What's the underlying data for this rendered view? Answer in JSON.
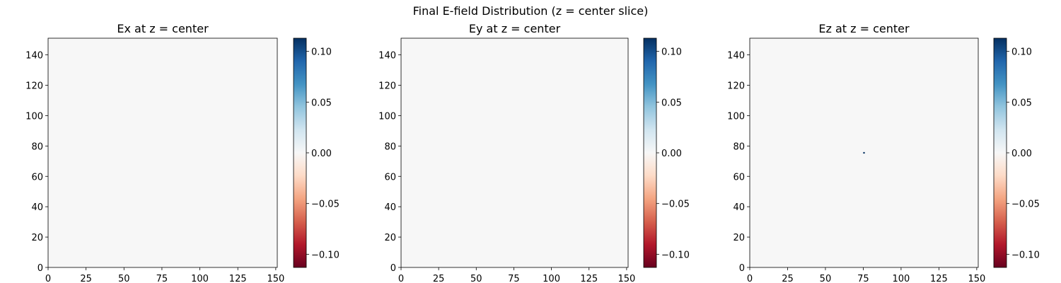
{
  "figure": {
    "suptitle": "Final E-field Distribution (z = center slice)"
  },
  "chart_data": [
    {
      "type": "heatmap",
      "title": "Ex at z = center",
      "xlabel": "",
      "ylabel": "",
      "xlim": [
        0,
        151
      ],
      "ylim": [
        0,
        151
      ],
      "xticks": [
        0,
        25,
        50,
        75,
        100,
        125,
        150
      ],
      "yticks": [
        0,
        20,
        40,
        60,
        80,
        100,
        120,
        140
      ],
      "colormap": "RdBu",
      "colorbar": {
        "vmin": -0.113,
        "vmax": 0.113,
        "ticks": [
          -0.1,
          -0.05,
          0.0,
          0.05,
          0.1
        ],
        "tick_labels": [
          "−0.10",
          "−0.05",
          "0.00",
          "0.05",
          "0.10"
        ]
      },
      "field_value": 0.0,
      "hotspots": []
    },
    {
      "type": "heatmap",
      "title": "Ey at z = center",
      "xlabel": "",
      "ylabel": "",
      "xlim": [
        0,
        151
      ],
      "ylim": [
        0,
        151
      ],
      "xticks": [
        0,
        25,
        50,
        75,
        100,
        125,
        150
      ],
      "yticks": [
        0,
        20,
        40,
        60,
        80,
        100,
        120,
        140
      ],
      "colormap": "RdBu",
      "colorbar": {
        "vmin": -0.113,
        "vmax": 0.113,
        "ticks": [
          -0.1,
          -0.05,
          0.0,
          0.05,
          0.1
        ],
        "tick_labels": [
          "−0.10",
          "−0.05",
          "0.00",
          "0.05",
          "0.10"
        ]
      },
      "field_value": 0.0,
      "hotspots": []
    },
    {
      "type": "heatmap",
      "title": "Ez at z = center",
      "xlabel": "",
      "ylabel": "",
      "xlim": [
        0,
        151
      ],
      "ylim": [
        0,
        151
      ],
      "xticks": [
        0,
        25,
        50,
        75,
        100,
        125,
        150
      ],
      "yticks": [
        0,
        20,
        40,
        60,
        80,
        100,
        120,
        140
      ],
      "colormap": "RdBu",
      "colorbar": {
        "vmin": -0.113,
        "vmax": 0.113,
        "ticks": [
          -0.1,
          -0.05,
          0.0,
          0.05,
          0.1
        ],
        "tick_labels": [
          "−0.10",
          "−0.05",
          "0.00",
          "0.05",
          "0.10"
        ]
      },
      "field_value": 0.0,
      "hotspots": [
        {
          "x": 75,
          "y": 75,
          "value": 0.113
        }
      ]
    }
  ]
}
